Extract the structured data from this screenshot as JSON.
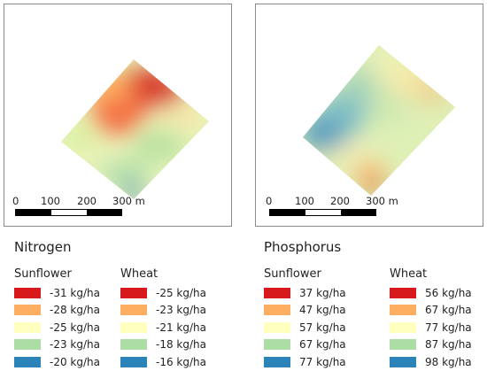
{
  "scale": {
    "ticks": [
      "0",
      "100",
      "200",
      "300 m"
    ]
  },
  "nitrogen": {
    "title": "Nitrogen",
    "crops": [
      {
        "name": "Sunflower",
        "classes": [
          {
            "label": "-31 kg/ha",
            "color": "#d7191c"
          },
          {
            "label": "-28 kg/ha",
            "color": "#fdae61"
          },
          {
            "label": "-25 kg/ha",
            "color": "#ffffbf"
          },
          {
            "label": "-23 kg/ha",
            "color": "#abdda4"
          },
          {
            "label": "-20 kg/ha",
            "color": "#2b83ba"
          }
        ]
      },
      {
        "name": "Wheat",
        "classes": [
          {
            "label": "-25 kg/ha",
            "color": "#d7191c"
          },
          {
            "label": "-23 kg/ha",
            "color": "#fdae61"
          },
          {
            "label": "-21 kg/ha",
            "color": "#ffffbf"
          },
          {
            "label": "-18 kg/ha",
            "color": "#abdda4"
          },
          {
            "label": "-16 kg/ha",
            "color": "#2b83ba"
          }
        ]
      }
    ]
  },
  "phosphorus": {
    "title": "Phosphorus",
    "crops": [
      {
        "name": "Sunflower",
        "classes": [
          {
            "label": "37 kg/ha",
            "color": "#d7191c"
          },
          {
            "label": "47 kg/ha",
            "color": "#fdae61"
          },
          {
            "label": "57 kg/ha",
            "color": "#ffffbf"
          },
          {
            "label": "67 kg/ha",
            "color": "#abdda4"
          },
          {
            "label": "77 kg/ha",
            "color": "#2b83ba"
          }
        ]
      },
      {
        "name": "Wheat",
        "classes": [
          {
            "label": "56 kg/ha",
            "color": "#d7191c"
          },
          {
            "label": "67 kg/ha",
            "color": "#fdae61"
          },
          {
            "label": "77 kg/ha",
            "color": "#ffffbf"
          },
          {
            "label": "87 kg/ha",
            "color": "#abdda4"
          },
          {
            "label": "98 kg/ha",
            "color": "#2b83ba"
          }
        ]
      }
    ]
  }
}
